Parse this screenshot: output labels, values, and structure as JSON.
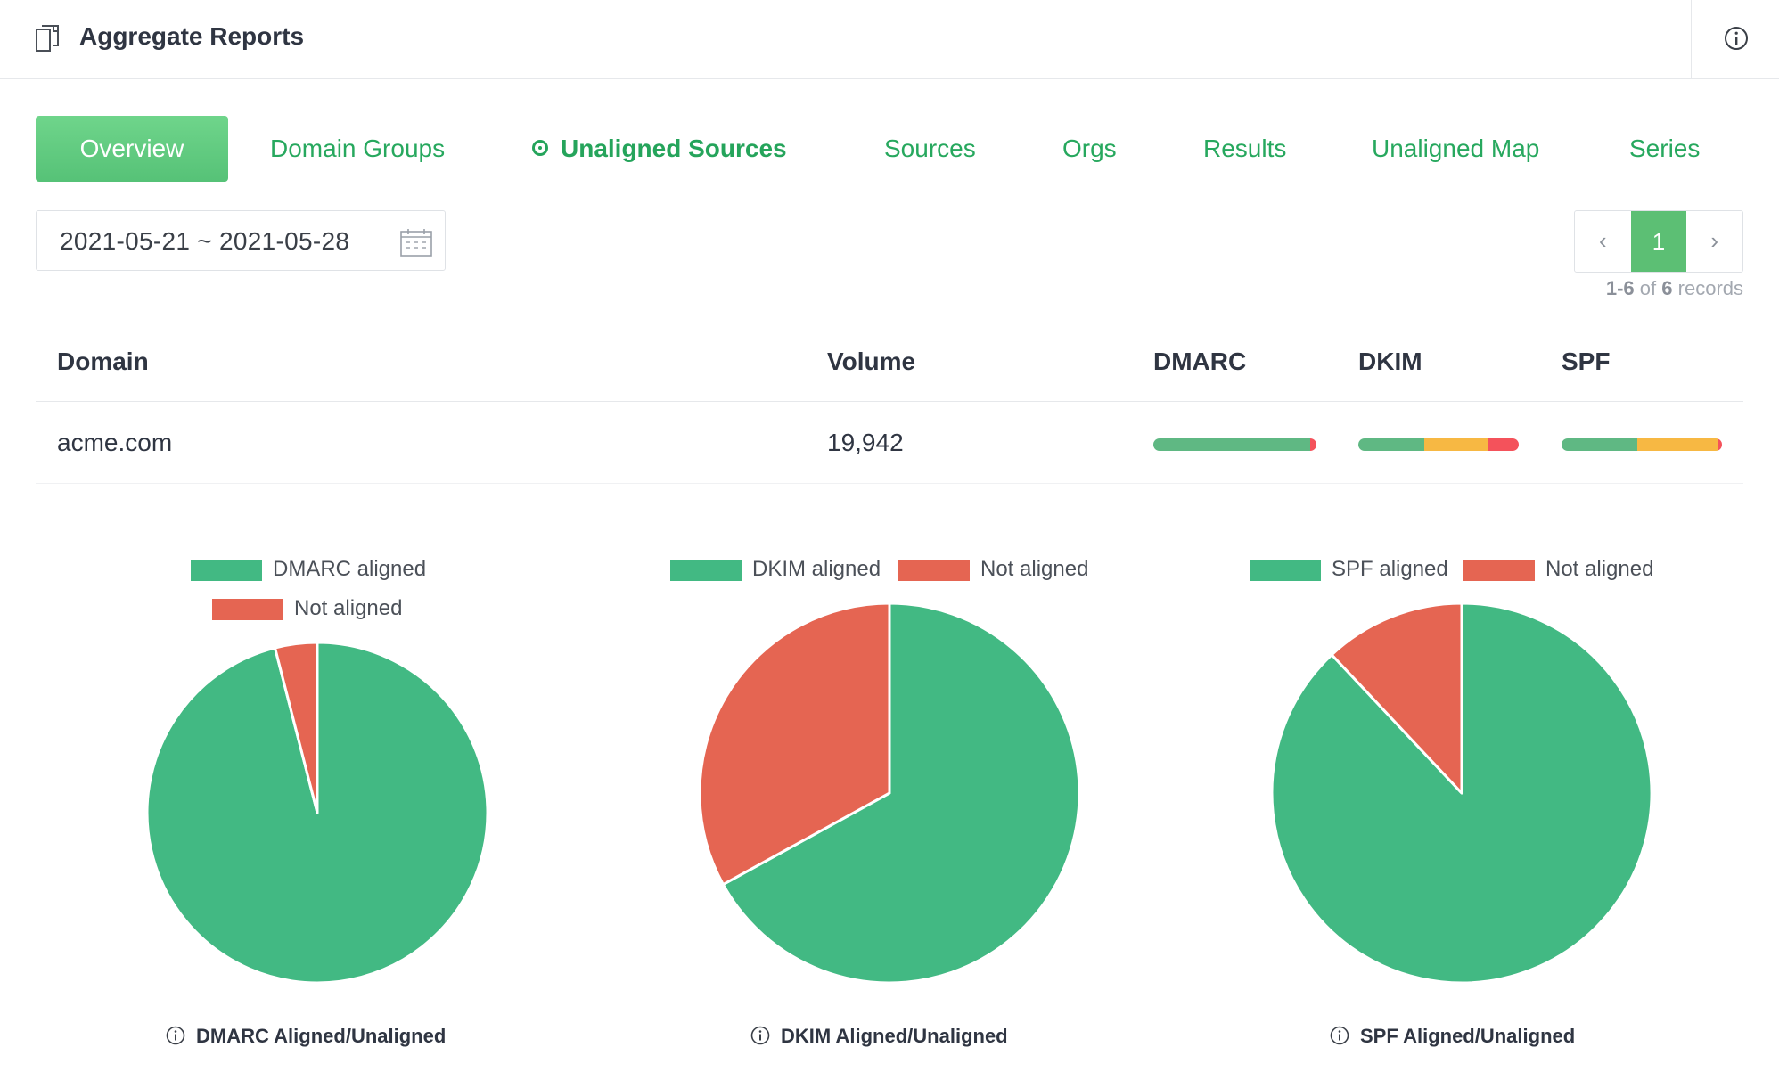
{
  "header": {
    "title": "Aggregate Reports",
    "icon": "document-icon",
    "info_icon": "info-icon"
  },
  "tabs": [
    {
      "label": "Overview",
      "state": "filled"
    },
    {
      "label": "Domain Groups",
      "state": "normal"
    },
    {
      "label": "Unaligned Sources",
      "state": "current"
    },
    {
      "label": "Sources",
      "state": "normal"
    },
    {
      "label": "Orgs",
      "state": "normal"
    },
    {
      "label": "Results",
      "state": "normal"
    },
    {
      "label": "Unaligned Map",
      "state": "normal"
    },
    {
      "label": "Series",
      "state": "normal"
    }
  ],
  "date_range": {
    "value": "2021-05-21 ~ 2021-05-28",
    "icon": "calendar-icon"
  },
  "pagination": {
    "prev": "‹",
    "current": "1",
    "next": "›",
    "range": "1-6",
    "of": "of",
    "total": "6",
    "records": "records"
  },
  "table": {
    "headers": {
      "domain": "Domain",
      "volume": "Volume",
      "dmarc": "DMARC",
      "dkim": "DKIM",
      "spf": "SPF"
    },
    "rows": [
      {
        "domain": "acme.com",
        "volume": "19,942",
        "dmarc_bar": [
          {
            "pct": 96,
            "color": "#5fb883"
          },
          {
            "pct": 4,
            "color": "#f4525b"
          }
        ],
        "dkim_bar": [
          {
            "pct": 41,
            "color": "#5fb883"
          },
          {
            "pct": 40,
            "color": "#f7b843"
          },
          {
            "pct": 19,
            "color": "#f4525b"
          }
        ],
        "spf_bar": [
          {
            "pct": 47,
            "color": "#5fb883"
          },
          {
            "pct": 51,
            "color": "#f7b843"
          },
          {
            "pct": 2,
            "color": "#f4525b"
          }
        ]
      }
    ]
  },
  "colors": {
    "aligned": "#42b983",
    "not_aligned": "#e56552",
    "tab_green": "#27a85e"
  },
  "chart_data": [
    {
      "type": "pie",
      "title": "DMARC Aligned/Unaligned",
      "categories": [
        "DMARC aligned",
        "Not aligned"
      ],
      "values": [
        96,
        4
      ],
      "legend": "top"
    },
    {
      "type": "pie",
      "title": "DKIM Aligned/Unaligned",
      "categories": [
        "DKIM aligned",
        "Not aligned"
      ],
      "values": [
        67,
        33
      ],
      "legend": "top"
    },
    {
      "type": "pie",
      "title": "SPF Aligned/Unaligned",
      "categories": [
        "SPF aligned",
        "Not aligned"
      ],
      "values": [
        88,
        12
      ],
      "legend": "top"
    }
  ]
}
